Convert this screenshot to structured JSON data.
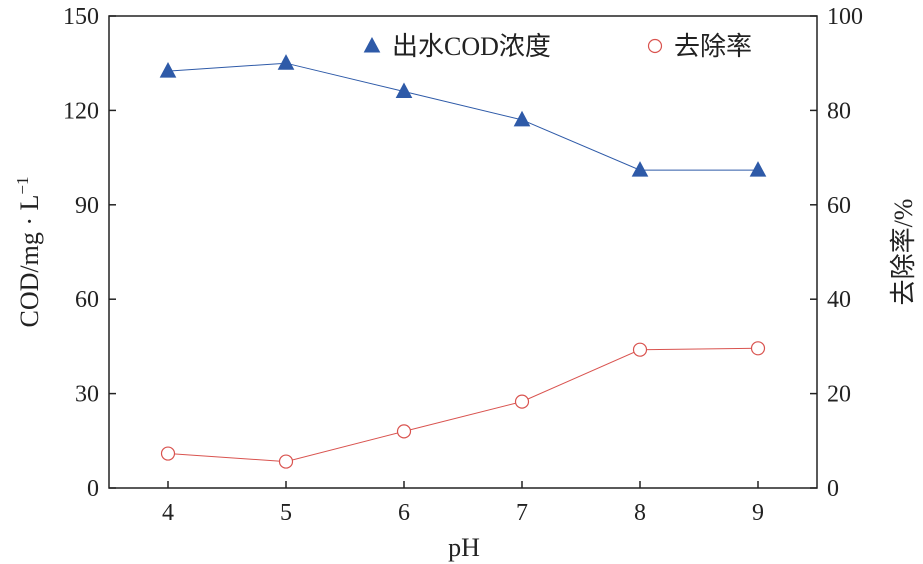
{
  "chart_data": {
    "type": "line",
    "x": [
      4,
      5,
      6,
      7,
      8,
      9
    ],
    "xlabel": "pH",
    "xlim": [
      3.5,
      9.5
    ],
    "left_axis": {
      "ylabel": "COD/mg · L",
      "ylabel_superscript": "−1",
      "ylim": [
        0,
        150
      ],
      "ticks": [
        0,
        30,
        60,
        90,
        120,
        150
      ]
    },
    "right_axis": {
      "ylabel": "去除率/%",
      "ylim": [
        0,
        100
      ],
      "ticks": [
        0,
        20,
        40,
        60,
        80,
        100
      ]
    },
    "series": [
      {
        "name": "出水COD浓度",
        "axis": "left",
        "marker": "triangle-filled",
        "color": "#2e5aa8",
        "values": [
          132.5,
          135,
          126,
          117,
          101,
          101
        ]
      },
      {
        "name": "去除率",
        "axis": "right",
        "marker": "circle-open",
        "color": "#d9534f",
        "values": [
          7.3,
          5.6,
          12,
          18.3,
          29.3,
          29.6
        ]
      }
    ],
    "legend_position": "top-right",
    "grid": false
  }
}
